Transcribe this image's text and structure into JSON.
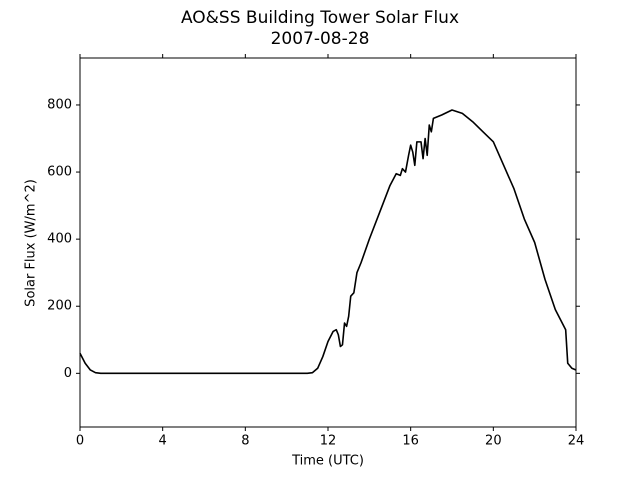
{
  "chart_data": {
    "type": "line",
    "title": "AO&SS Building Tower Solar Flux",
    "subtitle": "2007-08-28",
    "x_label": "Time (UTC)",
    "y_label": "Solar Flux (W/m^2)",
    "xlim": [
      0,
      24
    ],
    "xticks": [
      0,
      4,
      8,
      12,
      16,
      20,
      24
    ],
    "ylim": [
      -160,
      940
    ],
    "yticks": [
      0,
      200,
      400,
      600,
      800
    ],
    "series": [
      {
        "color": "#000000",
        "x": [
          0,
          0.25,
          0.5,
          0.75,
          1,
          2,
          3,
          4,
          5,
          6,
          7,
          8,
          9,
          10,
          11,
          11.25,
          11.5,
          11.75,
          12,
          12.25,
          12.4,
          12.5,
          12.6,
          12.7,
          12.8,
          12.9,
          13.0,
          13.1,
          13.25,
          13.4,
          13.6,
          14,
          14.5,
          15,
          15.3,
          15.5,
          15.6,
          15.75,
          15.9,
          16,
          16.1,
          16.2,
          16.3,
          16.5,
          16.6,
          16.7,
          16.8,
          16.9,
          17,
          17.1,
          17.5,
          18,
          18.5,
          19,
          19.5,
          20,
          20.5,
          21,
          21.5,
          22,
          22.5,
          23,
          23.5,
          23.6,
          23.8,
          24
        ],
        "values": [
          60,
          30,
          10,
          2,
          0,
          0,
          0,
          0,
          0,
          0,
          0,
          0,
          0,
          0,
          0,
          2,
          15,
          50,
          95,
          125,
          130,
          115,
          80,
          85,
          150,
          140,
          170,
          230,
          240,
          300,
          330,
          400,
          480,
          560,
          595,
          590,
          610,
          600,
          650,
          680,
          660,
          620,
          690,
          690,
          640,
          700,
          650,
          740,
          720,
          760,
          770,
          785,
          775,
          750,
          720,
          690,
          620,
          550,
          460,
          390,
          280,
          190,
          130,
          30,
          15,
          10
        ]
      }
    ]
  }
}
